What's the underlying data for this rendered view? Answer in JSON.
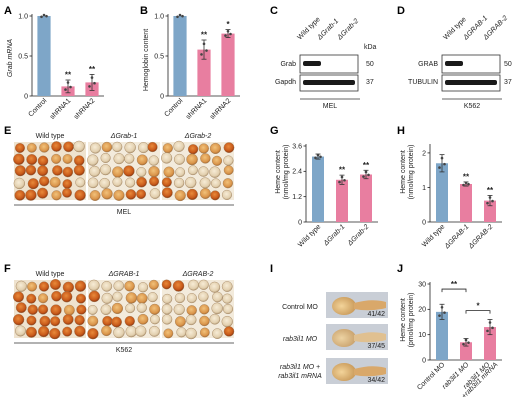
{
  "panels": {
    "A": {
      "letter": "A",
      "ylabel": "Grab mRNA",
      "yticks": [
        "0",
        "0.5",
        "1.0"
      ],
      "categories": [
        "Control",
        "shRNA1",
        "shRNA2"
      ],
      "sig": [
        "",
        "**",
        "**"
      ]
    },
    "B": {
      "letter": "B",
      "ylabel": "Hemoglobin content",
      "yticks": [
        "0",
        "0.5",
        "1.0"
      ],
      "categories": [
        "Control",
        "shRNA1",
        "shRNA2"
      ],
      "sig": [
        "",
        "**",
        "*"
      ]
    },
    "C": {
      "letter": "C",
      "lanes": [
        "Wild type",
        "ΔGrab-1",
        "ΔGrab-2"
      ],
      "kda": "kDa",
      "rows": [
        {
          "label": "Grab",
          "marker": "50"
        },
        {
          "label": "Gapdh",
          "marker": "37"
        }
      ],
      "cell": "MEL"
    },
    "D": {
      "letter": "D",
      "lanes": [
        "Wild type",
        "ΔGRAB-1",
        "ΔGRAB-2"
      ],
      "kda": "kDa",
      "rows": [
        {
          "label": "GRAB",
          "marker": "50"
        },
        {
          "label": "TUBULIN",
          "marker": "37"
        }
      ],
      "cell": "K562"
    },
    "E": {
      "letter": "E",
      "labels": [
        "Wild type",
        "ΔGrab-1",
        "ΔGrab-2"
      ],
      "cell": "MEL"
    },
    "F": {
      "letter": "F",
      "labels": [
        "Wild type",
        "ΔGRAB-1",
        "ΔGRAB-2"
      ],
      "cell": "K562"
    },
    "G": {
      "letter": "G",
      "ylabel1": "Heme content",
      "ylabel2": "(nmol/mg protein)",
      "yticks": [
        "0",
        "1.2",
        "2.4",
        "3.6"
      ],
      "categories": [
        "Wild type",
        "ΔGrab-1",
        "ΔGrab-2"
      ],
      "sig": [
        "",
        "**",
        "**"
      ]
    },
    "H": {
      "letter": "H",
      "ylabel1": "Heme content",
      "ylabel2": "(nmol/mg protein)",
      "yticks": [
        "0",
        "1",
        "2"
      ],
      "categories": [
        "Wild type",
        "ΔGRAB-1",
        "ΔGRAB-2"
      ],
      "sig": [
        "",
        "**",
        "**"
      ]
    },
    "I": {
      "letter": "I",
      "rows": [
        {
          "label": "Control MO",
          "count": "41/42"
        },
        {
          "label": "rab3il1 MO",
          "count": "37/45"
        },
        {
          "label": "rab3il1 MO +",
          "label2": "rab3il1 mRNA",
          "count": "34/42"
        }
      ]
    },
    "J": {
      "letter": "J",
      "ylabel1": "Heme content",
      "ylabel2": "(pmol/mg protein)",
      "yticks": [
        "0",
        "10",
        "20",
        "30"
      ],
      "categories": [
        "Control MO",
        "rab3il1 MO",
        "rab3il1 MO",
        "+rab3il1 mRNA"
      ],
      "sig": [
        "**",
        "*"
      ]
    }
  },
  "chart_data": [
    {
      "type": "bar",
      "panel": "A",
      "ylabel": "Grab mRNA",
      "categories": [
        "Control",
        "shRNA1",
        "shRNA2"
      ],
      "values": [
        1.0,
        0.12,
        0.17
      ],
      "errors": [
        0.0,
        0.08,
        0.1
      ],
      "ylim": [
        0,
        1.0
      ],
      "colors": [
        "#7ea6c8",
        "#e87ea0",
        "#e87ea0"
      ]
    },
    {
      "type": "bar",
      "panel": "B",
      "ylabel": "Hemoglobin content",
      "categories": [
        "Control",
        "shRNA1",
        "shRNA2"
      ],
      "values": [
        1.0,
        0.58,
        0.78
      ],
      "errors": [
        0.0,
        0.12,
        0.05
      ],
      "ylim": [
        0,
        1.0
      ],
      "colors": [
        "#7ea6c8",
        "#e87ea0",
        "#e87ea0"
      ]
    },
    {
      "type": "bar",
      "panel": "G",
      "ylabel": "Heme content (nmol/mg protein)",
      "categories": [
        "Wild type",
        "ΔGrab-1",
        "ΔGrab-2"
      ],
      "values": [
        3.1,
        2.0,
        2.25
      ],
      "errors": [
        0.12,
        0.22,
        0.2
      ],
      "ylim": [
        0,
        3.6
      ],
      "colors": [
        "#7ea6c8",
        "#e87ea0",
        "#e87ea0"
      ]
    },
    {
      "type": "bar",
      "panel": "H",
      "ylabel": "Heme content (nmol/mg protein)",
      "categories": [
        "Wild type",
        "ΔGRAB-1",
        "ΔGRAB-2"
      ],
      "values": [
        1.7,
        1.1,
        0.62
      ],
      "errors": [
        0.25,
        0.06,
        0.15
      ],
      "ylim": [
        0,
        2.2
      ],
      "colors": [
        "#7ea6c8",
        "#e87ea0",
        "#e87ea0"
      ]
    },
    {
      "type": "bar",
      "panel": "J",
      "ylabel": "Heme content (pmol/mg protein)",
      "categories": [
        "Control MO",
        "rab3il1 MO",
        "rab3il1 MO +rab3il1 mRNA"
      ],
      "values": [
        19,
        7,
        13
      ],
      "errors": [
        3,
        1.5,
        3
      ],
      "ylim": [
        0,
        30
      ],
      "colors": [
        "#7ea6c8",
        "#e87ea0",
        "#e87ea0"
      ]
    }
  ]
}
